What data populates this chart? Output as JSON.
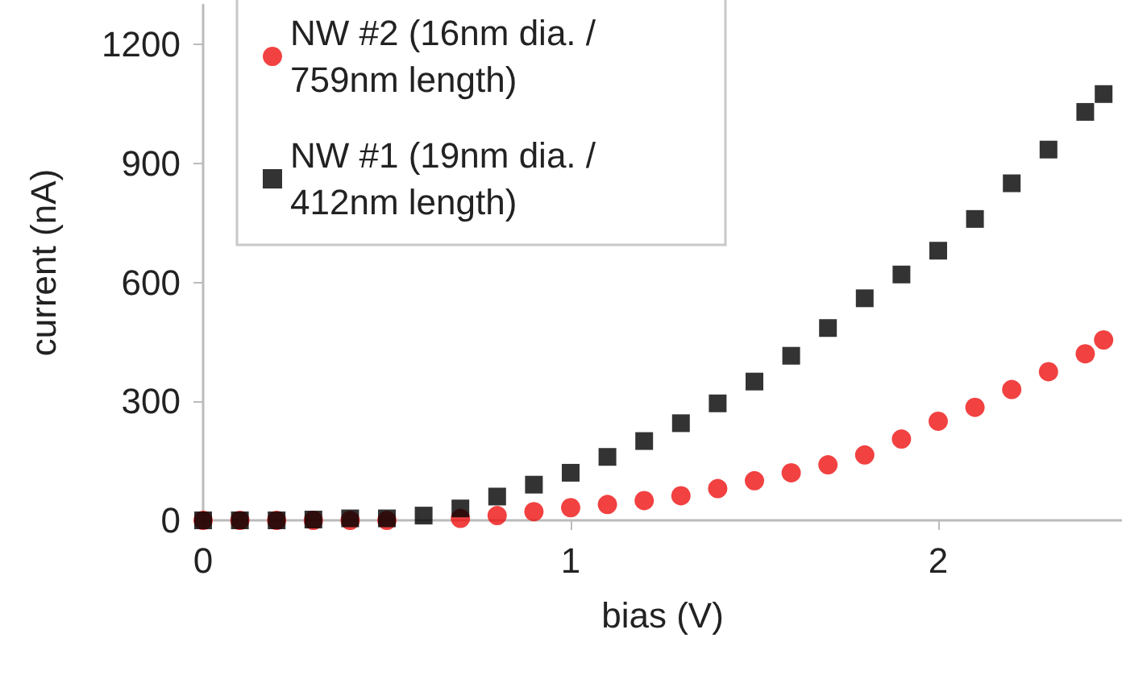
{
  "chart_data": {
    "type": "scatter",
    "xlabel": "bias (V)",
    "ylabel": "current (nA)",
    "xlim": [
      0,
      2.5
    ],
    "xticks": [
      0,
      1,
      2
    ],
    "ylim": [
      0,
      1300
    ],
    "yticks": [
      0,
      300,
      600,
      900,
      1200
    ],
    "grid": false,
    "legend": "top left",
    "series": [
      {
        "name": "NW #2 (16nm dia. / 759nm length)",
        "color": "#ee1111",
        "marker": "circle",
        "x": [
          0,
          0.1,
          0.2,
          0.3,
          0.4,
          0.5,
          0.6,
          0.7,
          0.8,
          0.9,
          1.0,
          1.1,
          1.2,
          1.3,
          1.4,
          1.5,
          1.6,
          1.7,
          1.8,
          1.9,
          2.0,
          2.1,
          2.2,
          2.3,
          2.4,
          2.45
        ],
        "values": [
          0,
          0,
          0,
          0,
          0,
          0,
          null,
          5,
          12,
          22,
          32,
          40,
          50,
          62,
          80,
          100,
          120,
          140,
          165,
          205,
          250,
          285,
          330,
          375,
          420,
          455
        ]
      },
      {
        "name": "NW #1 (19nm dia. / 412nm length)",
        "color": "#000000",
        "marker": "square",
        "x": [
          0,
          0.1,
          0.2,
          0.3,
          0.4,
          0.5,
          0.6,
          0.7,
          0.8,
          0.9,
          1.0,
          1.1,
          1.2,
          1.3,
          1.4,
          1.5,
          1.6,
          1.7,
          1.8,
          1.9,
          2.0,
          2.1,
          2.2,
          2.3,
          2.4,
          2.45
        ],
        "values": [
          0,
          0,
          0,
          2,
          5,
          5,
          12,
          30,
          60,
          90,
          120,
          160,
          200,
          245,
          295,
          350,
          415,
          485,
          560,
          620,
          680,
          760,
          850,
          935,
          1030,
          1075
        ]
      }
    ]
  }
}
